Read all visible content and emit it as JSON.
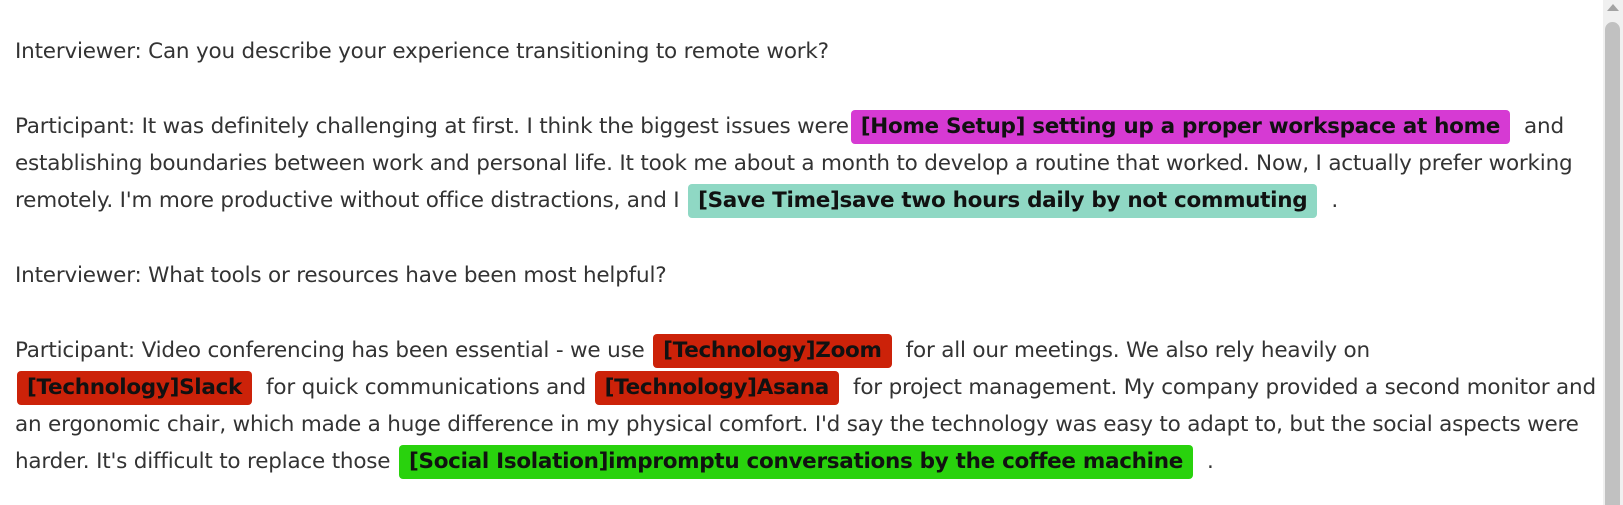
{
  "transcript": {
    "p1": {
      "text": "Interviewer: Can you describe your experience transitioning to remote work?"
    },
    "p2": {
      "before": "Participant: It was definitely challenging at first. I think the biggest issues were",
      "tag1": "[Home Setup] setting up a proper workspace at home",
      "mid": "and establishing boundaries between work and personal life. It took me about a month to develop a routine that worked. Now, I actually prefer working remotely. I'm more productive without office distractions, and I",
      "tag2": "[Save Time]save two hours daily by not commuting",
      "after": "."
    },
    "p3": {
      "text": "Interviewer: What tools or resources have been most helpful?"
    },
    "p4": {
      "before": "Participant: Video conferencing has been essential - we use",
      "tag1": "[Technology]Zoom",
      "mid1": "for all our meetings. We also rely heavily on",
      "tag2": "[Technology]Slack",
      "mid2": "for quick communications and",
      "tag3": "[Technology]Asana",
      "mid3": "for project management. My company provided a second monitor and an ergonomic chair, which made a huge difference in my physical comfort. I'd say the technology was easy to adapt to, but the social aspects were harder. It's difficult to replace those",
      "tag4": "[Social Isolation]impromptu conversations by the coffee machine",
      "after": "."
    }
  },
  "colors": {
    "home_setup": "#d63ad3",
    "save_time": "#8fd8c4",
    "technology": "#cc2209",
    "social_isolation": "#29d20d"
  }
}
